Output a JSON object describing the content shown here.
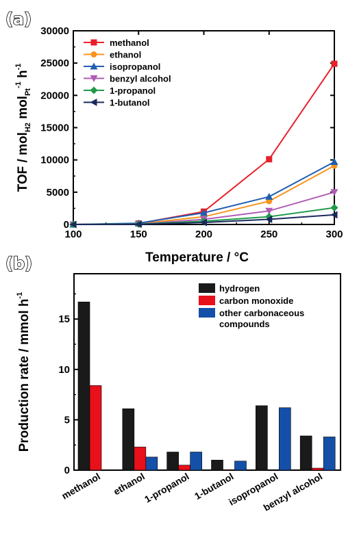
{
  "chart_data": [
    {
      "panel": "(a)",
      "type": "line",
      "xlabel": "Temperature / °C",
      "ylabel": {
        "main": "TOF / mol",
        "sub1": "H2",
        "mid": " mol",
        "sub2": "Pt",
        "sup1": "-1",
        "end": " h",
        "sup2": "-1"
      },
      "x": [
        100,
        150,
        200,
        250,
        300
      ],
      "xlim": [
        100,
        300
      ],
      "ylim": [
        0,
        30000
      ],
      "xticks": [
        100,
        150,
        200,
        250,
        300
      ],
      "yticks": [
        0,
        5000,
        10000,
        15000,
        20000,
        25000,
        30000
      ],
      "legend_position": "top-left",
      "series": [
        {
          "name": "methanol",
          "color": "#e8202a",
          "marker": "square",
          "values": [
            0,
            150,
            2000,
            10100,
            24900
          ]
        },
        {
          "name": "ethanol",
          "color": "#f7941d",
          "marker": "circle",
          "values": [
            0,
            100,
            1200,
            3600,
            9100
          ]
        },
        {
          "name": "isopropanol",
          "color": "#1f5fb0",
          "marker": "triangle-up",
          "values": [
            0,
            200,
            1800,
            4300,
            9700
          ]
        },
        {
          "name": "benzyl alcohol",
          "color": "#b05cb6",
          "marker": "triangle-down",
          "values": [
            0,
            50,
            800,
            2100,
            5000
          ]
        },
        {
          "name": "1-propanol",
          "color": "#1f9a4a",
          "marker": "diamond",
          "values": [
            0,
            50,
            500,
            1200,
            2600
          ]
        },
        {
          "name": "1-butanol",
          "color": "#1a2a5c",
          "marker": "triangle-left",
          "values": [
            0,
            30,
            300,
            800,
            1500
          ]
        }
      ]
    },
    {
      "panel": "(b)",
      "type": "bar",
      "ylabel": {
        "main": "Production rate / mmol h",
        "sup": "-1"
      },
      "categories": [
        "methanol",
        "ethanol",
        "1-propanol",
        "1-butanol",
        "isopropanol",
        "benzyl alcohol"
      ],
      "ylim": [
        0,
        19.5
      ],
      "yticks": [
        0,
        5,
        10,
        15
      ],
      "legend_position": "top-right",
      "series": [
        {
          "name": "hydrogen",
          "color": "#1a1a1a",
          "values": [
            16.7,
            6.1,
            1.8,
            1.0,
            6.4,
            3.4
          ]
        },
        {
          "name": "carbon monoxide",
          "color": "#e8101a",
          "values": [
            8.4,
            2.3,
            0.5,
            0.05,
            0,
            0.2
          ]
        },
        {
          "name": "other carbonaceous",
          "name2": "compounds",
          "color": "#1450a8",
          "values": [
            0,
            1.3,
            1.8,
            0.9,
            6.2,
            3.3
          ]
        }
      ]
    }
  ]
}
